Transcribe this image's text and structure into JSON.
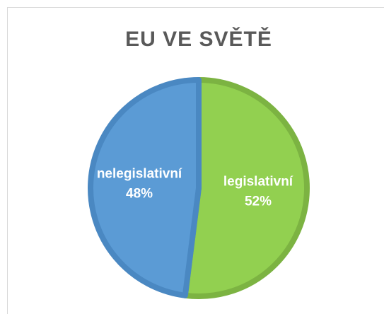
{
  "chart_data": {
    "type": "pie",
    "title": "EU VE SVĚTĚ",
    "categories": [
      "legislativní",
      "nelegislativní"
    ],
    "values": [
      52,
      48
    ],
    "value_labels": [
      "52%",
      "48%"
    ],
    "colors": [
      "#92d050",
      "#5b9bd5"
    ],
    "edge_colors": [
      "#7cb342",
      "#4a88c2"
    ]
  }
}
